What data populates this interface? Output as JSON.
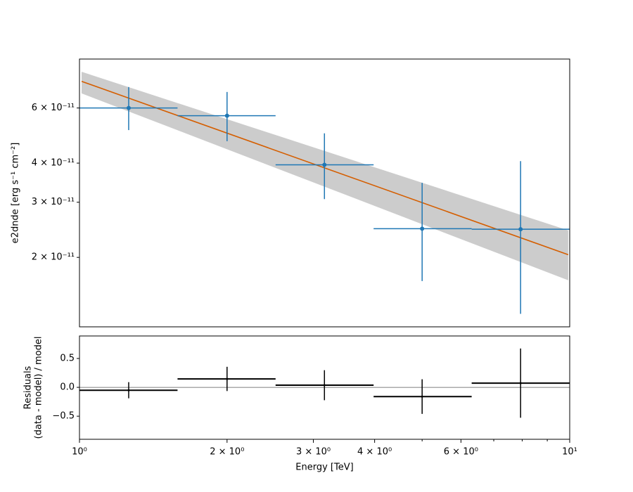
{
  "chart_data": [
    {
      "type": "errorbar",
      "xscale": "log",
      "yscale": "log",
      "ylabel": "e2dnde [erg s⁻¹ cm⁻²]",
      "xlim": [
        1,
        10
      ],
      "ylim": [
        1.2e-11,
        8.6e-11
      ],
      "yticks": [
        {
          "value": 2e-11,
          "label": "2 × 10⁻¹¹"
        },
        {
          "value": 3e-11,
          "label": "3 × 10⁻¹¹"
        },
        {
          "value": 4e-11,
          "label": "4 × 10⁻¹¹"
        },
        {
          "value": 6e-11,
          "label": "6 × 10⁻¹¹"
        }
      ],
      "x": [
        1.26,
        2.0,
        3.16,
        5.0,
        7.94
      ],
      "x_edges": [
        1,
        1.585,
        2.512,
        3.981,
        6.31,
        10
      ],
      "values": [
        6e-11,
        5.67e-11,
        3.95e-11,
        2.47e-11,
        2.46e-11
      ],
      "y_lower": [
        5.1e-11,
        4.7e-11,
        3.07e-11,
        1.68e-11,
        1.32e-11
      ],
      "y_upper": [
        7e-11,
        6.75e-11,
        4.98e-11,
        3.46e-11,
        4.06e-11
      ],
      "color": "#1f77b4",
      "model": {
        "x": [
          1.01,
          9.93
        ],
        "values": [
          7.3e-11,
          2.04e-11
        ],
        "lower": [
          6.68e-11,
          1.69e-11
        ],
        "upper": [
          7.83e-11,
          2.44e-11
        ],
        "color": "#d55e00",
        "band_color": "#cccccc"
      }
    },
    {
      "type": "errorbar",
      "xscale": "log",
      "yscale": "linear",
      "ylabel": [
        "Residuals",
        "(data - model) / model"
      ],
      "xlabel": "Energy [TeV]",
      "xlim": [
        1,
        10
      ],
      "ylim": [
        -0.9,
        0.89
      ],
      "xticks": [
        {
          "value": 1,
          "label": "10⁰"
        },
        {
          "value": 2,
          "label": "2 × 10⁰"
        },
        {
          "value": 3,
          "label": "3 × 10⁰"
        },
        {
          "value": 4,
          "label": "4 × 10⁰"
        },
        {
          "value": 6,
          "label": "6 × 10⁰"
        },
        {
          "value": 10,
          "label": "10¹"
        }
      ],
      "xminor": [
        5,
        7,
        8,
        9
      ],
      "yticks": [
        {
          "value": -0.5,
          "label": "−0.5"
        },
        {
          "value": 0,
          "label": "0.0"
        },
        0.5
      ],
      "reference_line": 0,
      "x": [
        1.26,
        2.0,
        3.16,
        5.0,
        7.94
      ],
      "x_edges": [
        1,
        1.585,
        2.512,
        3.981,
        6.31,
        10
      ],
      "values": [
        -0.05,
        0.146,
        0.037,
        -0.16,
        0.073
      ],
      "errors": [
        0.14,
        0.21,
        0.26,
        0.3,
        0.6
      ],
      "color": "#000000"
    }
  ]
}
